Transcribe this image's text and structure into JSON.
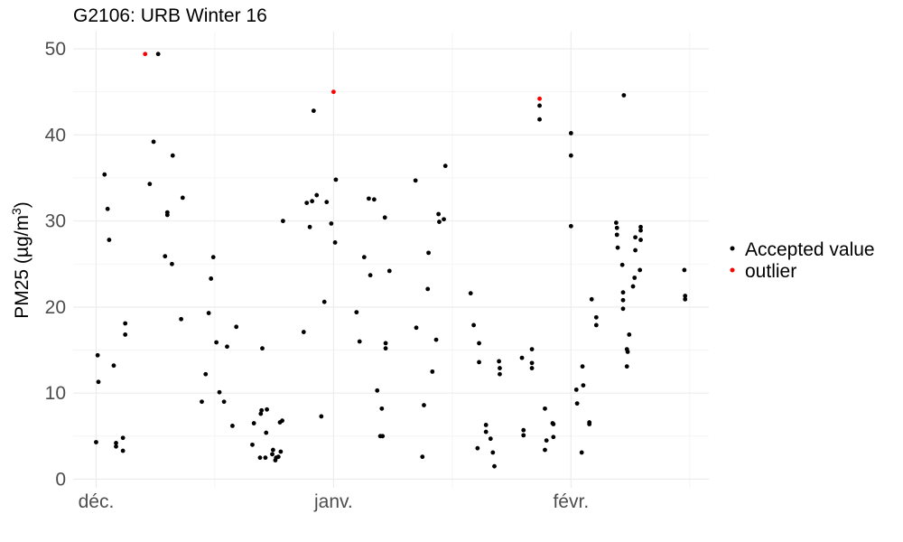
{
  "chart_data": {
    "type": "scatter",
    "title": "G2106: URB Winter 16",
    "xlabel": "",
    "ylabel": "PM25 (µg/m³)",
    "ylabel_parts": {
      "base": "PM25 (µg/m",
      "sup": "3",
      "close": ")"
    },
    "x_unit": "day offset from 1 Dec 2016",
    "x_ticks": [
      {
        "label": "déc.",
        "value": 0
      },
      {
        "label": "janv.",
        "value": 31
      },
      {
        "label": "févr.",
        "value": 62
      }
    ],
    "xlim": [
      -3,
      80
    ],
    "y_ticks": [
      0,
      10,
      20,
      30,
      40,
      50
    ],
    "ylim": [
      -1,
      52
    ],
    "grid": true,
    "legend": {
      "position": "right"
    },
    "series": [
      {
        "name": "Accepted value",
        "color": "#000000",
        "points": [
          [
            0.0,
            4.3
          ],
          [
            0.2,
            14.4
          ],
          [
            0.3,
            11.3
          ],
          [
            1.1,
            35.4
          ],
          [
            1.5,
            31.4
          ],
          [
            1.7,
            27.8
          ],
          [
            2.3,
            13.2
          ],
          [
            2.6,
            4.2
          ],
          [
            2.6,
            3.8
          ],
          [
            3.5,
            3.3
          ],
          [
            3.5,
            4.8
          ],
          [
            3.8,
            16.8
          ],
          [
            3.8,
            18.1
          ],
          [
            7.0,
            34.3
          ],
          [
            7.5,
            39.2
          ],
          [
            8.1,
            49.4
          ],
          [
            9.0,
            25.9
          ],
          [
            9.3,
            31.0
          ],
          [
            9.3,
            30.7
          ],
          [
            9.9,
            25.0
          ],
          [
            10.0,
            37.6
          ],
          [
            11.1,
            18.6
          ],
          [
            11.3,
            32.7
          ],
          [
            13.8,
            9.0
          ],
          [
            14.3,
            12.2
          ],
          [
            14.7,
            19.3
          ],
          [
            15.0,
            23.3
          ],
          [
            15.3,
            25.8
          ],
          [
            15.7,
            15.9
          ],
          [
            16.1,
            10.1
          ],
          [
            16.7,
            9.0
          ],
          [
            17.1,
            15.4
          ],
          [
            17.8,
            6.2
          ],
          [
            18.3,
            17.7
          ],
          [
            20.4,
            4.0
          ],
          [
            20.6,
            6.5
          ],
          [
            21.4,
            2.5
          ],
          [
            21.7,
            15.2
          ],
          [
            21.5,
            7.6
          ],
          [
            21.6,
            8.0
          ],
          [
            22.1,
            2.5
          ],
          [
            22.2,
            5.4
          ],
          [
            22.3,
            8.1
          ],
          [
            23.0,
            2.9
          ],
          [
            23.1,
            3.4
          ],
          [
            23.4,
            2.2
          ],
          [
            23.5,
            2.5
          ],
          [
            23.8,
            2.6
          ],
          [
            24.1,
            3.2
          ],
          [
            24.0,
            6.6
          ],
          [
            24.3,
            6.8
          ],
          [
            24.4,
            30.0
          ],
          [
            27.1,
            17.1
          ],
          [
            27.5,
            32.1
          ],
          [
            27.9,
            29.3
          ],
          [
            28.2,
            32.3
          ],
          [
            28.4,
            42.8
          ],
          [
            28.8,
            33.0
          ],
          [
            29.4,
            7.3
          ],
          [
            29.8,
            20.6
          ],
          [
            30.1,
            32.2
          ],
          [
            30.7,
            29.7
          ],
          [
            31.2,
            27.5
          ],
          [
            31.3,
            34.8
          ],
          [
            34.0,
            19.4
          ],
          [
            34.4,
            16.0
          ],
          [
            35.0,
            25.8
          ],
          [
            35.6,
            32.6
          ],
          [
            35.8,
            23.7
          ],
          [
            36.3,
            32.5
          ],
          [
            36.7,
            10.3
          ],
          [
            37.1,
            5.0
          ],
          [
            37.3,
            8.2
          ],
          [
            37.4,
            5.0
          ],
          [
            37.7,
            30.4
          ],
          [
            37.8,
            15.8
          ],
          [
            37.8,
            15.2
          ],
          [
            38.3,
            24.2
          ],
          [
            41.7,
            34.7
          ],
          [
            41.8,
            17.6
          ],
          [
            42.6,
            2.6
          ],
          [
            42.8,
            8.6
          ],
          [
            43.4,
            26.3
          ],
          [
            43.3,
            22.1
          ],
          [
            43.9,
            12.5
          ],
          [
            44.4,
            16.2
          ],
          [
            44.7,
            30.8
          ],
          [
            44.8,
            29.9
          ],
          [
            45.4,
            30.2
          ],
          [
            45.6,
            36.4
          ],
          [
            48.9,
            21.6
          ],
          [
            49.3,
            17.9
          ],
          [
            49.8,
            3.6
          ],
          [
            50.0,
            15.8
          ],
          [
            50.0,
            13.6
          ],
          [
            50.9,
            6.3
          ],
          [
            50.9,
            5.5
          ],
          [
            51.5,
            4.7
          ],
          [
            51.8,
            3.1
          ],
          [
            52.0,
            1.5
          ],
          [
            52.6,
            13.7
          ],
          [
            52.7,
            12.9
          ],
          [
            52.7,
            12.2
          ],
          [
            55.6,
            14.1
          ],
          [
            55.8,
            5.7
          ],
          [
            55.8,
            5.1
          ],
          [
            56.9,
            15.1
          ],
          [
            56.9,
            13.5
          ],
          [
            56.9,
            12.9
          ],
          [
            57.9,
            43.4
          ],
          [
            57.9,
            41.8
          ],
          [
            58.6,
            8.2
          ],
          [
            58.6,
            3.4
          ],
          [
            58.8,
            4.5
          ],
          [
            59.6,
            6.5
          ],
          [
            59.7,
            6.4
          ],
          [
            59.7,
            4.9
          ],
          [
            62.0,
            40.2
          ],
          [
            62.0,
            37.6
          ],
          [
            62.0,
            29.4
          ],
          [
            62.7,
            10.4
          ],
          [
            62.8,
            8.8
          ],
          [
            63.4,
            3.1
          ],
          [
            63.5,
            13.1
          ],
          [
            63.6,
            10.9
          ],
          [
            64.4,
            6.6
          ],
          [
            64.4,
            6.4
          ],
          [
            64.7,
            20.9
          ],
          [
            65.3,
            18.8
          ],
          [
            65.3,
            17.9
          ],
          [
            67.9,
            29.8
          ],
          [
            68.0,
            29.2
          ],
          [
            68.0,
            28.4
          ],
          [
            68.1,
            26.9
          ],
          [
            68.7,
            24.9
          ],
          [
            68.8,
            21.7
          ],
          [
            68.8,
            20.8
          ],
          [
            68.8,
            19.8
          ],
          [
            68.9,
            44.6
          ],
          [
            69.3,
            15.1
          ],
          [
            69.4,
            14.8
          ],
          [
            69.3,
            13.1
          ],
          [
            69.6,
            16.8
          ],
          [
            70.1,
            22.4
          ],
          [
            70.3,
            23.4
          ],
          [
            70.4,
            26.6
          ],
          [
            70.4,
            28.1
          ],
          [
            71.1,
            29.3
          ],
          [
            71.1,
            28.9
          ],
          [
            71.1,
            27.8
          ],
          [
            71.0,
            24.3
          ],
          [
            76.8,
            24.3
          ],
          [
            76.9,
            21.3
          ],
          [
            76.9,
            20.9
          ]
        ]
      },
      {
        "name": "outlier",
        "color": "#ff0000",
        "points": [
          [
            6.4,
            49.4
          ],
          [
            31.0,
            45.0
          ],
          [
            57.9,
            44.2
          ]
        ]
      }
    ]
  }
}
